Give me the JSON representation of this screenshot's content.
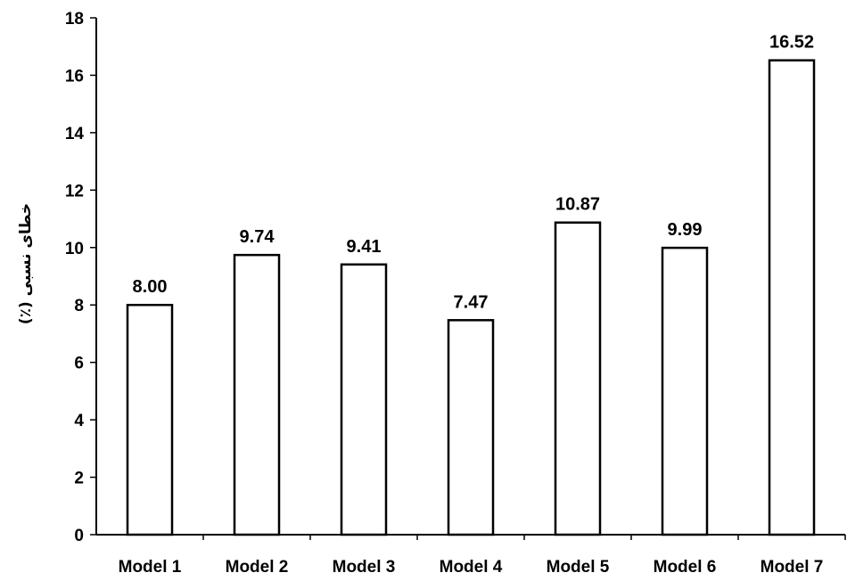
{
  "chart_data": {
    "type": "bar",
    "title": "",
    "xlabel": "",
    "ylabel": "خطای نسبی (٪)",
    "categories": [
      "Model 1",
      "Model 2",
      "Model 3",
      "Model 4",
      "Model 5",
      "Model 6",
      "Model 7"
    ],
    "values": [
      8.0,
      9.74,
      9.41,
      7.47,
      10.87,
      9.99,
      16.52
    ],
    "value_labels": [
      "8.00",
      "9.74",
      "9.41",
      "7.47",
      "10.87",
      "9.99",
      "16.52"
    ],
    "ylim": [
      0,
      18
    ],
    "yticks": [
      0,
      2,
      4,
      6,
      8,
      10,
      12,
      14,
      16,
      18
    ],
    "grid": false,
    "legend": "none",
    "bar_fill": "#ffffff",
    "bar_stroke": "#000000"
  }
}
